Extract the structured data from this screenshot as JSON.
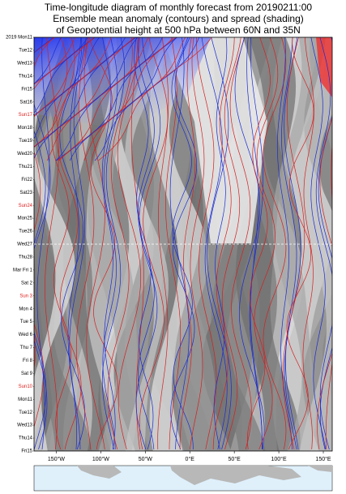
{
  "chart_data": {
    "type": "hovmoller",
    "title": [
      "Time-longitude diagram of monthly forecast  from 20190211:00",
      "Ensemble mean anomaly (contours) and spread (shading)",
      "of Geopotential height at 500 hPa between 60N and 35N"
    ],
    "categories": [
      "2019 Mon11",
      "Tue12",
      "Wed13",
      "Thu14",
      "Fri15",
      "Sat16",
      "Sun17",
      "Mon18",
      "Tue19",
      "Wed20",
      "Thu21",
      "Fri22",
      "Sat23",
      "Sun24",
      "Mon25",
      "Tue26",
      "Wed27",
      "Thu28",
      "Mar Fri 1",
      "Sat 2",
      "Sun 3",
      "Mon 4",
      "Tue 5",
      "Wed 6",
      "Thu 7",
      "Fri 8",
      "Sat 9",
      "Sun10",
      "Mon11",
      "Tue12",
      "Wed13",
      "Thu14",
      "Fri15"
    ],
    "highlight": [
      6,
      13,
      20,
      27
    ],
    "highlight_color": "#e02020",
    "xlim": [
      -175,
      160
    ],
    "xticks": [
      {
        "value": -150,
        "label": "150°W"
      },
      {
        "value": -100,
        "label": "100°W"
      },
      {
        "value": -50,
        "label": "50°W"
      },
      {
        "value": 0,
        "label": "0°E"
      },
      {
        "value": 50,
        "label": "50°E"
      },
      {
        "value": 100,
        "label": "100°E"
      },
      {
        "value": 150,
        "label": "150°E"
      }
    ]
  }
}
